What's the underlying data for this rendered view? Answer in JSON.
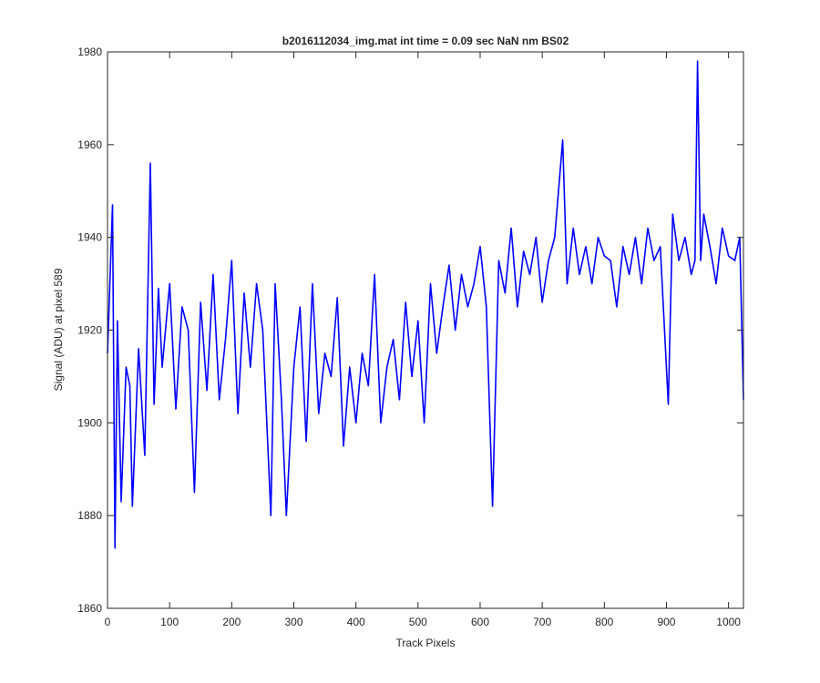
{
  "chart_data": {
    "type": "line",
    "title": "b2016112034_img.mat int time = 0.09 sec  NaN nm BS02",
    "xlabel": "Track Pixels",
    "ylabel": "Signal (ADU) at pixel 589",
    "xlim": [
      0,
      1024
    ],
    "ylim": [
      1860,
      1980
    ],
    "xticks": [
      0,
      100,
      200,
      300,
      400,
      500,
      600,
      700,
      800,
      900,
      1000
    ],
    "yticks": [
      1860,
      1880,
      1900,
      1920,
      1940,
      1960,
      1980
    ],
    "grid": false,
    "line_color": "#0000ff",
    "series": [
      {
        "x": [
          0,
          8,
          12,
          16,
          22,
          30,
          36,
          40,
          50,
          60,
          69,
          75,
          82,
          88,
          100,
          110,
          120,
          130,
          140,
          150,
          160,
          170,
          180,
          190,
          200,
          210,
          220,
          230,
          240,
          250,
          263,
          270,
          280,
          288,
          300,
          310,
          320,
          330,
          340,
          350,
          360,
          370,
          380,
          390,
          400,
          410,
          420,
          430,
          440,
          450,
          460,
          470,
          480,
          490,
          500,
          510,
          520,
          530,
          540,
          550,
          560,
          570,
          580,
          590,
          600,
          610,
          620,
          630,
          640,
          650,
          660,
          670,
          680,
          690,
          700,
          710,
          720,
          733,
          740,
          750,
          760,
          770,
          780,
          790,
          800,
          810,
          820,
          830,
          840,
          850,
          860,
          870,
          880,
          890,
          903,
          910,
          920,
          930,
          940,
          946,
          950,
          955,
          960,
          970,
          980,
          990,
          1000,
          1010,
          1018,
          1024
        ],
        "y": [
          1915,
          1947,
          1873,
          1922,
          1883,
          1912,
          1908,
          1882,
          1916,
          1893,
          1956,
          1904,
          1929,
          1912,
          1930,
          1903,
          1925,
          1920,
          1885,
          1926,
          1907,
          1932,
          1905,
          1918,
          1935,
          1902,
          1928,
          1912,
          1930,
          1920,
          1880,
          1930,
          1905,
          1880,
          1912,
          1925,
          1896,
          1930,
          1902,
          1915,
          1910,
          1927,
          1895,
          1912,
          1900,
          1915,
          1908,
          1932,
          1900,
          1912,
          1918,
          1905,
          1926,
          1910,
          1922,
          1900,
          1930,
          1915,
          1925,
          1934,
          1920,
          1932,
          1925,
          1930,
          1938,
          1925,
          1882,
          1935,
          1928,
          1942,
          1925,
          1937,
          1932,
          1940,
          1926,
          1935,
          1940,
          1961,
          1930,
          1942,
          1932,
          1938,
          1930,
          1940,
          1936,
          1935,
          1925,
          1938,
          1932,
          1940,
          1930,
          1942,
          1935,
          1938,
          1904,
          1945,
          1935,
          1940,
          1932,
          1935,
          1978,
          1935,
          1945,
          1938,
          1930,
          1942,
          1936,
          1935,
          1940,
          1905
        ]
      }
    ]
  }
}
